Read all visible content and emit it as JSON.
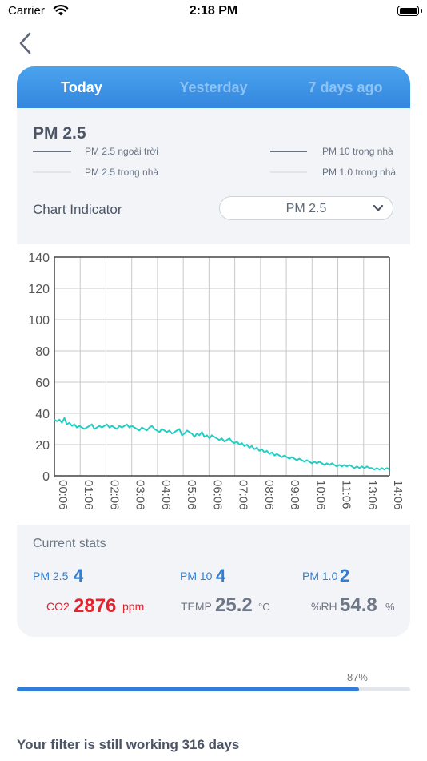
{
  "status_bar": {
    "carrier": "Carrier",
    "time": "2:18 PM"
  },
  "tabs": [
    {
      "label": "Today",
      "active": true
    },
    {
      "label": "Yesterday",
      "active": false
    },
    {
      "label": "7 days ago",
      "active": false
    }
  ],
  "panel": {
    "title": "PM 2.5",
    "legend": [
      {
        "label": "PM 2.5 ngoài trời",
        "color": "#6b7282"
      },
      {
        "label": "PM 10 trong nhà",
        "color": "#6b7282"
      },
      {
        "label": "PM 2.5 trong nhà",
        "color": "#e2e4e8"
      },
      {
        "label": "PM 1.0 trong nhà",
        "color": "#e2e4e8"
      }
    ],
    "chart_indicator_label": "Chart Indicator",
    "chart_indicator_value": "PM 2.5"
  },
  "chart_data": {
    "type": "line",
    "ylim": [
      0,
      140
    ],
    "y_ticks": [
      0,
      20,
      40,
      60,
      80,
      100,
      120,
      140
    ],
    "x_tick_labels": [
      "00:06",
      "01:06",
      "02:06",
      "03:06",
      "04:06",
      "05:06",
      "06:06",
      "07:06",
      "08:06",
      "09:06",
      "10:06",
      "11:06",
      "13:06",
      "14:06"
    ],
    "grid": true,
    "line_color": "#23cfc4",
    "series": [
      {
        "values": [
          36,
          35,
          36,
          34,
          37,
          33,
          34,
          32,
          33,
          31,
          32,
          31,
          30,
          31,
          32,
          33,
          30,
          31,
          32,
          31,
          32,
          33,
          31,
          32,
          31,
          30,
          32,
          31,
          32,
          33,
          31,
          32,
          31,
          30,
          29,
          31,
          30,
          29,
          31,
          32,
          30,
          29,
          28,
          30,
          29,
          28,
          29,
          27,
          28,
          29,
          30,
          26,
          27,
          29,
          28,
          27,
          25,
          27,
          26,
          28,
          25,
          26,
          24,
          26,
          25,
          24,
          23,
          24,
          22,
          23,
          24,
          22,
          21,
          22,
          20,
          21,
          19,
          20,
          18,
          19,
          17,
          18,
          16,
          17,
          15,
          16,
          14,
          15,
          13,
          14,
          13,
          12,
          13,
          12,
          11,
          12,
          11,
          10,
          11,
          10,
          9,
          10,
          9,
          8,
          9,
          8,
          9,
          8,
          7,
          8,
          7,
          8,
          7,
          6,
          7,
          6,
          7,
          6,
          7,
          6,
          5,
          6,
          5,
          6,
          5,
          6,
          5,
          5,
          4,
          5,
          4,
          5,
          4,
          5,
          4
        ]
      }
    ]
  },
  "current_stats": {
    "title": "Current stats",
    "pm25": {
      "label": "PM 2.5",
      "value": "4"
    },
    "pm10": {
      "label": "PM 10",
      "value": "4"
    },
    "pm1": {
      "label": "PM 1.0",
      "value": "2"
    },
    "co2": {
      "label": "CO2",
      "value": "2876",
      "unit": "ppm"
    },
    "temp": {
      "label": "TEMP",
      "value": "25.2",
      "unit": "°C"
    },
    "rh": {
      "label": "%RH",
      "value": "54.8",
      "unit": "%"
    }
  },
  "filter": {
    "progress_text": "87%",
    "progress_value": 0.87,
    "message": "Your filter is still working 316 days"
  },
  "colors": {
    "accent": "#2f7fd6",
    "tab_gradient_top": "#4aa3ee",
    "tab_gradient_bottom": "#3486de",
    "co2_alert": "#e8212b",
    "card_bg": "#f2f4f7"
  },
  "icons": {
    "back": "chevron-left-icon",
    "dropdown": "chevron-down-icon",
    "wifi": "wifi-icon",
    "battery": "battery-icon"
  }
}
